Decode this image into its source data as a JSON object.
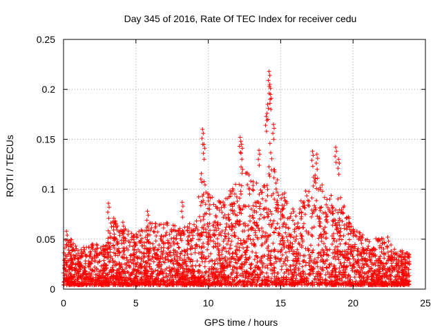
{
  "chart_data": {
    "type": "scatter",
    "title": "Day 345 of 2016, Rate Of TEC Index for receiver cedu",
    "xlabel": "GPS time / hours",
    "ylabel": "ROTI / TECUs",
    "xlim": [
      0,
      25
    ],
    "ylim": [
      0,
      0.25
    ],
    "xticks": [
      0,
      5,
      10,
      15,
      20,
      25
    ],
    "yticks": [
      0,
      0.05,
      0.1,
      0.15,
      0.2,
      0.25
    ],
    "xtick_labels": [
      "0",
      "5",
      "10",
      "15",
      "20",
      "25"
    ],
    "ytick_labels": [
      "0",
      "0.05",
      "0.1",
      "0.15",
      "0.2",
      "0.25"
    ],
    "grid": true,
    "marker": "+",
    "series": [
      {
        "name": "ROTI",
        "color": "#ff0000",
        "x_range": [
          0,
          23.9
        ],
        "envelope": {
          "hours": [
            0,
            0.3,
            1,
            2,
            3,
            3.2,
            4,
            5,
            6,
            7,
            8,
            9,
            9.5,
            10,
            11,
            12,
            12.3,
            13,
            14,
            14.3,
            15,
            16,
            17,
            17.5,
            18,
            19,
            20,
            21,
            22,
            23,
            23.9
          ],
          "typical_max": [
            0.03,
            0.05,
            0.035,
            0.04,
            0.04,
            0.07,
            0.055,
            0.05,
            0.06,
            0.06,
            0.055,
            0.06,
            0.11,
            0.09,
            0.08,
            0.1,
            0.12,
            0.1,
            0.11,
            0.14,
            0.1,
            0.07,
            0.1,
            0.11,
            0.09,
            0.09,
            0.055,
            0.045,
            0.045,
            0.035,
            0.03
          ]
        },
        "peaks": [
          {
            "x": 9.6,
            "y": 0.16
          },
          {
            "x": 9.7,
            "y": 0.145
          },
          {
            "x": 12.2,
            "y": 0.152
          },
          {
            "x": 12.3,
            "y": 0.145
          },
          {
            "x": 13.5,
            "y": 0.139
          },
          {
            "x": 14.2,
            "y": 0.218
          },
          {
            "x": 14.25,
            "y": 0.205
          },
          {
            "x": 14.3,
            "y": 0.195
          },
          {
            "x": 14.1,
            "y": 0.185
          },
          {
            "x": 14.0,
            "y": 0.173
          },
          {
            "x": 14.5,
            "y": 0.165
          },
          {
            "x": 17.2,
            "y": 0.138
          },
          {
            "x": 17.5,
            "y": 0.135
          },
          {
            "x": 18.8,
            "y": 0.142
          },
          {
            "x": 19.0,
            "y": 0.13
          },
          {
            "x": 3.1,
            "y": 0.086
          },
          {
            "x": 4.1,
            "y": 0.067
          },
          {
            "x": 5.8,
            "y": 0.078
          },
          {
            "x": 8.2,
            "y": 0.087
          },
          {
            "x": 0.2,
            "y": 0.058
          },
          {
            "x": 22.4,
            "y": 0.052
          },
          {
            "x": 23.7,
            "y": 0.036
          }
        ]
      }
    ]
  }
}
